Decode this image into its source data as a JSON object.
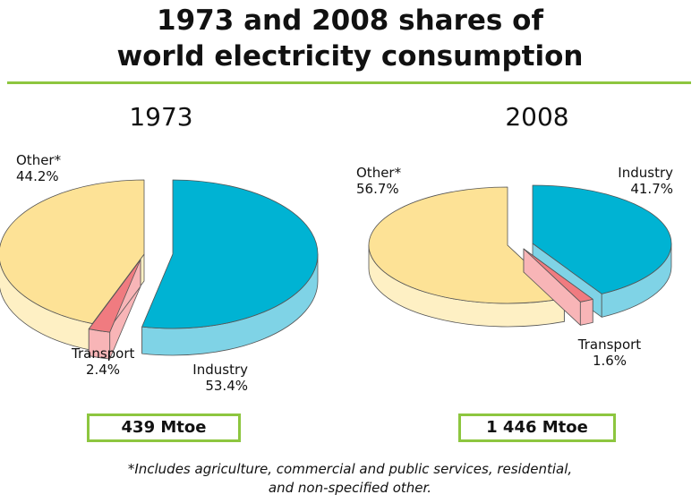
{
  "title_line1": "1973 and 2008 shares of",
  "title_line2": "world electricity consumption",
  "footnote_line1": "*Includes agriculture, commercial and public services, residential,",
  "footnote_line2": "and non-specified other.",
  "colors": {
    "industry_top": "#00b3d3",
    "industry_side": "#7fd3e6",
    "transport_top": "#f07b80",
    "transport_side": "#f8b5b7",
    "other_top": "#fde296",
    "other_side": "#fef0c4",
    "accent_green": "#8dc63f"
  },
  "chart_data": [
    {
      "type": "pie",
      "title": "1973",
      "total": "439 Mtoe",
      "slices": [
        {
          "name": "Industry",
          "value": 53.4,
          "label": "53.4%"
        },
        {
          "name": "Transport",
          "value": 2.4,
          "label": "2.4%"
        },
        {
          "name": "Other*",
          "value": 44.2,
          "label": "44.2%"
        }
      ]
    },
    {
      "type": "pie",
      "title": "2008",
      "total": "1 446 Mtoe",
      "slices": [
        {
          "name": "Industry",
          "value": 41.7,
          "label": "41.7%"
        },
        {
          "name": "Transport",
          "value": 1.6,
          "label": "1.6%"
        },
        {
          "name": "Other*",
          "value": 56.7,
          "label": "56.7%"
        }
      ]
    }
  ]
}
